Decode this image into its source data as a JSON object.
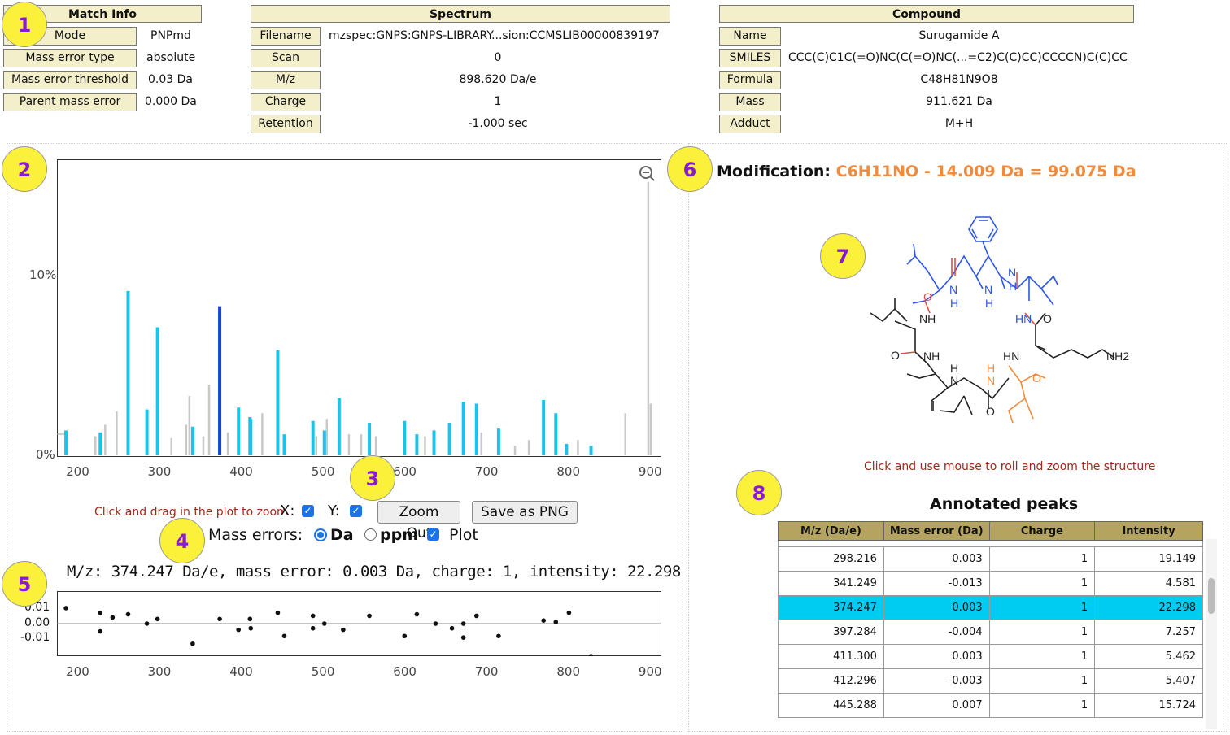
{
  "match_info": {
    "header": "Match Info",
    "rows": [
      {
        "label": "Mode",
        "value": "PNPmd"
      },
      {
        "label": "Mass error type",
        "value": "absolute"
      },
      {
        "label": "Mass error threshold",
        "value": "0.03 Da"
      },
      {
        "label": "Parent mass error",
        "value": "0.000 Da"
      }
    ]
  },
  "spectrum": {
    "header": "Spectrum",
    "rows": [
      {
        "label": "Filename",
        "value": "mzspec:GNPS:GNPS-LIBRARY...sion:CCMSLIB00000839197"
      },
      {
        "label": "Scan",
        "value": "0"
      },
      {
        "label": "M/z",
        "value": "898.620 Da/e"
      },
      {
        "label": "Charge",
        "value": "1"
      },
      {
        "label": "Retention",
        "value": "-1.000 sec"
      }
    ]
  },
  "compound": {
    "header": "Compound",
    "rows": [
      {
        "label": "Name",
        "value": "Surugamide A"
      },
      {
        "label": "SMILES",
        "value": "CCC(C)C1C(=O)NC(C(=O)NC(...=C2)C(C)CC)CCCCN)C(C)CC"
      },
      {
        "label": "Formula",
        "value": "C48H81N9O8"
      },
      {
        "label": "Mass",
        "value": "911.621 Da"
      },
      {
        "label": "Adduct",
        "value": "M+H"
      }
    ]
  },
  "badges": [
    "1",
    "2",
    "3",
    "4",
    "5",
    "6",
    "7",
    "8"
  ],
  "spectrum_plot": {
    "y_ticks": [
      "10%",
      "0%"
    ],
    "x_ticks": [
      "200",
      "300",
      "400",
      "500",
      "600",
      "700",
      "800",
      "900"
    ],
    "zoom_icon": "zoom-out-icon",
    "hint": "Click and drag in the plot to zoom",
    "x_label": "X:",
    "y_label": "Y:",
    "zoom_out": "Zoom Out",
    "save_png": "Save as PNG",
    "mass_errors_label": "Mass errors:",
    "opt_da": "Da",
    "opt_ppm": "ppm",
    "opt_plot": "Plot",
    "colors": {
      "annotated": "#19c4ea",
      "selected": "#1246d8",
      "unannotated": "#c8c8c8"
    }
  },
  "selected_peak_text": "M/z: 374.247 Da/e, mass error: 0.003 Da, charge: 1, intensity: 22.298",
  "error_plot": {
    "y_ticks": [
      "0.01",
      "0.00",
      "-0.01"
    ],
    "x_ticks": [
      "200",
      "300",
      "400",
      "500",
      "600",
      "700",
      "800",
      "900"
    ]
  },
  "chart_data": [
    {
      "type": "bar",
      "title": "",
      "xlim": [
        175,
        915
      ],
      "ylim": [
        0,
        15.4
      ],
      "y_ticks": [
        "10%",
        "0%"
      ],
      "annotated": [
        [
          186,
          1.3
        ],
        [
          228,
          1.2
        ],
        [
          262,
          8.6
        ],
        [
          285,
          2.4
        ],
        [
          298,
          6.7
        ],
        [
          341,
          1.5
        ],
        [
          374,
          7.8
        ],
        [
          397,
          2.5
        ],
        [
          411,
          2
        ],
        [
          412,
          1.9
        ],
        [
          445,
          5.5
        ],
        [
          453,
          1.1
        ],
        [
          488,
          1.8
        ],
        [
          502,
          1.3
        ],
        [
          520,
          3
        ],
        [
          557,
          1.7
        ],
        [
          600,
          1.8
        ],
        [
          615,
          1.1
        ],
        [
          636,
          1.3
        ],
        [
          655,
          1.7
        ],
        [
          672,
          2.8
        ],
        [
          688,
          2.7
        ],
        [
          715,
          1.4
        ],
        [
          770,
          2.9
        ],
        [
          785,
          2.2
        ],
        [
          798,
          0.6
        ],
        [
          828,
          0.5
        ]
      ],
      "unannotated": [
        [
          222,
          1
        ],
        [
          234,
          1.6
        ],
        [
          248,
          2.3
        ],
        [
          315,
          0.9
        ],
        [
          333,
          1.6
        ],
        [
          337,
          3.1
        ],
        [
          354,
          1
        ],
        [
          361,
          3.7
        ],
        [
          384,
          1.2
        ],
        [
          426,
          2.2
        ],
        [
          492,
          1
        ],
        [
          505,
          1.9
        ],
        [
          532,
          1.1
        ],
        [
          547,
          1.1
        ],
        [
          565,
          1
        ],
        [
          625,
          1
        ],
        [
          636,
          0.6
        ],
        [
          694,
          1.2
        ],
        [
          735,
          0.5
        ],
        [
          752,
          0.8
        ],
        [
          812,
          0.8
        ],
        [
          870,
          2.2
        ],
        [
          898,
          14.3
        ],
        [
          901,
          2.7
        ]
      ],
      "selected": 374
    },
    {
      "type": "scatter",
      "title": "",
      "xlim": [
        175,
        915
      ],
      "ylim": [
        -0.021,
        0.021
      ],
      "points": [
        [
          186,
          0.01
        ],
        [
          228,
          0.007
        ],
        [
          228,
          -0.005
        ],
        [
          243,
          0.004
        ],
        [
          262,
          0.006
        ],
        [
          285,
          0
        ],
        [
          298,
          0.003
        ],
        [
          341,
          -0.013
        ],
        [
          374,
          0.003
        ],
        [
          397,
          -0.004
        ],
        [
          411,
          0.003
        ],
        [
          412,
          -0.003
        ],
        [
          445,
          0.007
        ],
        [
          453,
          -0.008
        ],
        [
          488,
          0.005
        ],
        [
          488,
          -0.003
        ],
        [
          502,
          0
        ],
        [
          525,
          -0.004
        ],
        [
          557,
          0.005
        ],
        [
          600,
          -0.008
        ],
        [
          615,
          0.006
        ],
        [
          638,
          0
        ],
        [
          658,
          -0.003
        ],
        [
          672,
          0
        ],
        [
          672,
          -0.009
        ],
        [
          688,
          0.005
        ],
        [
          715,
          -0.008
        ],
        [
          770,
          0.002
        ],
        [
          785,
          0.001
        ],
        [
          801,
          0.007
        ],
        [
          828,
          -0.021
        ]
      ]
    }
  ],
  "modification": {
    "label": "Modification:",
    "value": "C6H11NO - 14.009 Da = 99.075 Da",
    "color": "#f08a3c"
  },
  "structure_hint": "Click and use mouse to roll and zoom the structure",
  "structure_labels": [
    "N",
    "H",
    "N",
    "H",
    "N",
    "H",
    "NH",
    "O",
    "HN",
    "O",
    "NH",
    "HN",
    "NH2",
    "N",
    "H",
    "N",
    "H",
    "O",
    "O",
    "O"
  ],
  "annotated_peaks": {
    "title": "Annotated peaks",
    "columns": [
      "M/z (Da/e)",
      "Mass error (Da)",
      "Charge",
      "Intensity"
    ],
    "rows": [
      [
        "298.216",
        "0.003",
        "1",
        "19.149"
      ],
      [
        "341.249",
        "-0.013",
        "1",
        "4.581"
      ],
      [
        "374.247",
        "0.003",
        "1",
        "22.298"
      ],
      [
        "397.284",
        "-0.004",
        "1",
        "7.257"
      ],
      [
        "411.300",
        "0.003",
        "1",
        "5.462"
      ],
      [
        "412.296",
        "-0.003",
        "1",
        "5.407"
      ],
      [
        "445.288",
        "0.007",
        "1",
        "15.724"
      ]
    ],
    "selected_row": 2,
    "highlight_color": "#00ccf2"
  }
}
